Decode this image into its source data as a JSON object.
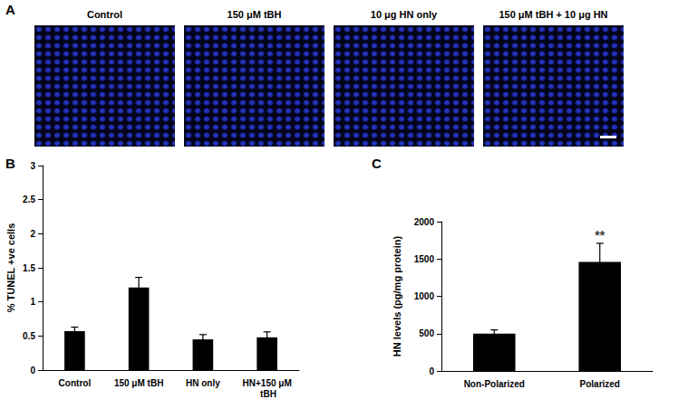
{
  "panel_a": {
    "label": "A",
    "titles": [
      "Control",
      "150 μM tBH",
      "10 μg HN only",
      "150 μM tBH + 10 μg HN"
    ]
  },
  "chart_data": [
    {
      "type": "bar",
      "label": "B",
      "y_label": "% TUNEL +ve cells",
      "categories": [
        "Control",
        "150 μM tBH",
        "HN only",
        "HN+150 μM tBH"
      ],
      "values": [
        0.57,
        1.21,
        0.45,
        0.48
      ],
      "errors": [
        0.06,
        0.15,
        0.07,
        0.08
      ],
      "color": "#000000",
      "ylim": [
        0,
        3
      ],
      "yticks": [
        0,
        0.5,
        1,
        1.5,
        2,
        2.5,
        3
      ],
      "grid": false
    },
    {
      "type": "bar",
      "label": "C",
      "y_label": "HN levels (pg/mg protein)",
      "categories": [
        "Non-Polarized",
        "Polarized"
      ],
      "values": [
        500,
        1460
      ],
      "errors": [
        50,
        250
      ],
      "annotations": [
        {
          "text": "**",
          "category": "Polarized"
        }
      ],
      "color": "#000000",
      "ylim": [
        0,
        2000
      ],
      "yticks": [
        0,
        500,
        1000,
        1500,
        2000
      ],
      "grid": false
    }
  ]
}
